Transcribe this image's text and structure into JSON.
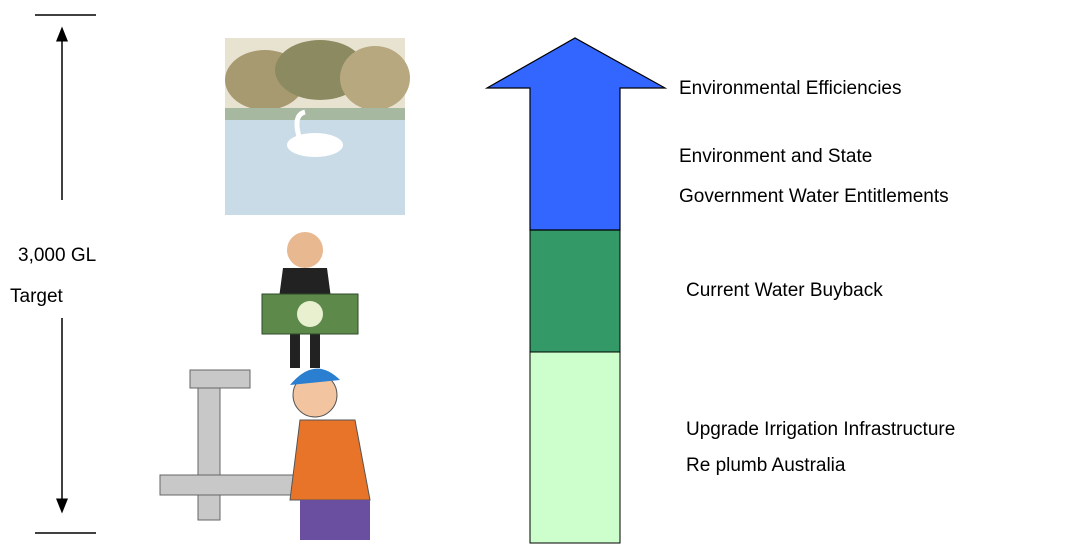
{
  "target": {
    "amount": "3,000 GL",
    "label": "Target"
  },
  "segments": [
    {
      "lines": [
        "Environmental Efficiencies"
      ]
    },
    {
      "lines": [
        "Environment and State",
        "Government Water Entitlements"
      ]
    },
    {
      "lines": [
        "Current Water Buyback"
      ]
    },
    {
      "lines": [
        "Upgrade Irrigation Infrastructure",
        "Re plumb Australia"
      ]
    }
  ]
}
